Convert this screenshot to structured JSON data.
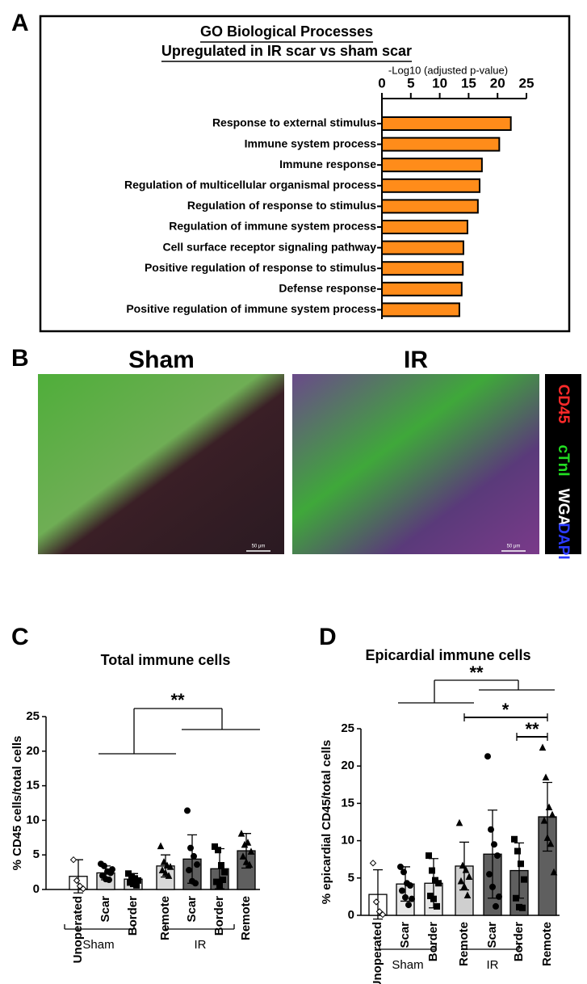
{
  "panel_labels": [
    "A",
    "B",
    "C",
    "D"
  ],
  "images": {
    "titles": [
      "Sham",
      "IR"
    ],
    "scale_bar": "50 μm",
    "stains": [
      {
        "name": "CD45",
        "color": "#ff2a2a"
      },
      {
        "name": "cTnI",
        "color": "#22dd22"
      },
      {
        "name": "WGA",
        "color": "#ffffff"
      },
      {
        "name": "DAPI",
        "color": "#2a3bff"
      }
    ]
  },
  "chart_data": [
    {
      "type": "bar",
      "orientation": "horizontal",
      "title": [
        "GO Biological Processes",
        "Upregulated in IR scar vs sham scar"
      ],
      "x_label": "-Log10 (adjusted p-value)",
      "categories": [
        "Response to external stimulus",
        "Immune system process",
        "Immune response",
        "Regulation of multicellular organismal process",
        "Regulation of response to stimulus",
        "Regulation of immune system process",
        "Cell surface receptor signaling pathway",
        "Positive regulation of response to stimulus",
        "Defense response",
        "Positive regulation of immune system process"
      ],
      "values": [
        22.3,
        20.3,
        17.3,
        16.9,
        16.6,
        14.8,
        14.1,
        14.0,
        13.8,
        13.4
      ],
      "color": "#ff8c1a",
      "xlim": [
        0,
        25
      ],
      "xticks": [
        0,
        5,
        10,
        15,
        20,
        25
      ]
    },
    {
      "type": "bar",
      "title": "Total immune cells",
      "y_label": "% CD45 cells/total cells",
      "categories": [
        "Unoperated",
        "Scar",
        "Border",
        "Remote",
        "Scar",
        "Border",
        "Remote"
      ],
      "groups": [
        "Sham",
        "IR"
      ],
      "values": [
        1.9,
        2.4,
        1.5,
        3.4,
        4.4,
        3.0,
        5.6
      ],
      "errors": [
        2.4,
        1.0,
        0.8,
        1.6,
        3.5,
        2.9,
        2.5
      ],
      "colors": [
        "#ffffff",
        "#d9d9d9",
        "#d9d9d9",
        "#d9d9d9",
        "#5f5f5f",
        "#5f5f5f",
        "#5f5f5f"
      ],
      "markers": [
        "diamond",
        "circle",
        "square",
        "triangle",
        "circle",
        "square",
        "triangle"
      ],
      "points": [
        [
          4.3,
          1.3,
          0.5,
          0.1
        ],
        [
          3.7,
          3.4,
          2.6,
          2.4,
          2.0,
          1.5,
          1.4,
          2.9
        ],
        [
          2.3,
          1.9,
          1.6,
          1.3,
          1.0,
          0.8,
          0.6
        ],
        [
          6.3,
          4.0,
          3.5,
          3.3,
          2.8,
          2.4,
          2.0
        ],
        [
          11.4,
          6.0,
          4.8,
          3.6,
          2.8,
          1.2,
          0.9
        ],
        [
          6.2,
          5.7,
          3.5,
          2.5,
          1.1,
          0.6,
          1.4
        ],
        [
          8.1,
          6.5,
          6.8,
          5.5,
          4.8,
          4.0,
          3.6
        ]
      ],
      "annotations": [
        "**"
      ],
      "ylim": [
        0,
        25
      ],
      "yticks": [
        0,
        5,
        10,
        15,
        20,
        25
      ]
    },
    {
      "type": "bar",
      "title": "Epicardial immune cells",
      "y_label": "% epicardial CD45/total cells",
      "categories": [
        "Unoperated",
        "Scar",
        "Border",
        "Remote",
        "Scar",
        "Border",
        "Remote"
      ],
      "groups": [
        "Sham",
        "IR"
      ],
      "values": [
        2.8,
        4.2,
        4.3,
        6.6,
        8.2,
        6.0,
        13.2
      ],
      "errors": [
        3.3,
        2.3,
        3.3,
        3.2,
        5.9,
        3.7,
        4.6
      ],
      "colors": [
        "#ffffff",
        "#e6e6e6",
        "#e6e6e6",
        "#cfcfcf",
        "#5f5f5f",
        "#5f5f5f",
        "#5f5f5f"
      ],
      "markers": [
        "diamond",
        "circle",
        "square",
        "triangle",
        "circle",
        "square",
        "triangle"
      ],
      "points": [
        [
          7.0,
          1.8,
          0.5,
          0.1
        ],
        [
          6.5,
          5.8,
          4.3,
          4.0,
          3.3,
          2.4,
          1.4,
          2.2
        ],
        [
          8.0,
          6.0,
          4.7,
          4.3,
          2.6,
          2.2,
          1.2
        ],
        [
          12.4,
          6.7,
          6.1,
          5.2,
          4.6,
          3.9,
          2.7
        ],
        [
          21.3,
          11.5,
          9.5,
          8.0,
          5.5,
          3.8,
          1.2,
          2.5
        ],
        [
          10.2,
          8.6,
          6.9,
          4.8,
          2.3,
          1.1,
          1.0
        ],
        [
          22.5,
          18.5,
          14.5,
          13.5,
          12.7,
          10.4,
          9.6,
          5.8
        ]
      ],
      "annotations": [
        "**",
        "*",
        "**"
      ],
      "ylim": [
        0,
        25
      ],
      "yticks": [
        0,
        5,
        10,
        15,
        20,
        25
      ]
    }
  ]
}
